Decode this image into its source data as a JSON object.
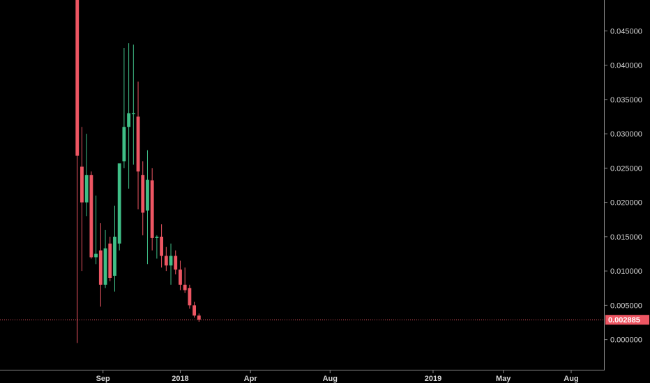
{
  "chart_data": {
    "type": "candlestick",
    "interval": "weekly",
    "colors": {
      "up": "#3fbf87",
      "down": "#ee5663",
      "background": "#000000",
      "axis": "#8a8a8a",
      "price_line": "#ee5663"
    },
    "x_ticks": [
      "Sep",
      "2018",
      "Apr",
      "Aug",
      "2019",
      "May",
      "Aug"
    ],
    "x_tick_index": [
      5.5,
      22,
      37,
      54,
      76,
      91,
      105.5
    ],
    "y_ticks": [
      "0.045000",
      "0.040000",
      "0.035000",
      "0.030000",
      "0.025000",
      "0.020000",
      "0.015000",
      "0.010000",
      "0.005000",
      "0.000000"
    ],
    "y_tick_values": [
      0.045,
      0.04,
      0.035,
      0.03,
      0.025,
      0.02,
      0.015,
      0.01,
      0.005,
      0.0
    ],
    "ylim": [
      -0.0044,
      0.0495
    ],
    "x_index_range": [
      -16.5,
      112.5
    ],
    "last_price": {
      "value": 0.002885,
      "label": "0.002885"
    },
    "candles": [
      {
        "o": 0.06,
        "h": 0.08,
        "l": -0.0005,
        "c": 0.0268
      },
      {
        "o": 0.0252,
        "h": 0.031,
        "l": 0.01,
        "c": 0.02
      },
      {
        "o": 0.02,
        "h": 0.03,
        "l": 0.018,
        "c": 0.024
      },
      {
        "o": 0.024,
        "h": 0.0245,
        "l": 0.0118,
        "c": 0.012
      },
      {
        "o": 0.012,
        "h": 0.021,
        "l": 0.011,
        "c": 0.0125
      },
      {
        "o": 0.013,
        "h": 0.017,
        "l": 0.0048,
        "c": 0.008
      },
      {
        "o": 0.008,
        "h": 0.016,
        "l": 0.0075,
        "c": 0.0133
      },
      {
        "o": 0.014,
        "h": 0.015,
        "l": 0.0085,
        "c": 0.009
      },
      {
        "o": 0.0093,
        "h": 0.0195,
        "l": 0.007,
        "c": 0.015
      },
      {
        "o": 0.014,
        "h": 0.0255,
        "l": 0.013,
        "c": 0.0257
      },
      {
        "o": 0.026,
        "h": 0.0425,
        "l": 0.025,
        "c": 0.031
      },
      {
        "o": 0.031,
        "h": 0.0432,
        "l": 0.022,
        "c": 0.033
      },
      {
        "o": 0.033,
        "h": 0.043,
        "l": 0.0255,
        "c": 0.033
      },
      {
        "o": 0.0325,
        "h": 0.0376,
        "l": 0.019,
        "c": 0.0245
      },
      {
        "o": 0.024,
        "h": 0.026,
        "l": 0.0152,
        "c": 0.0185
      },
      {
        "o": 0.0188,
        "h": 0.0276,
        "l": 0.011,
        "c": 0.0233
      },
      {
        "o": 0.0232,
        "h": 0.025,
        "l": 0.013,
        "c": 0.0148
      },
      {
        "o": 0.0148,
        "h": 0.0152,
        "l": 0.0118,
        "c": 0.015
      },
      {
        "o": 0.015,
        "h": 0.0168,
        "l": 0.0105,
        "c": 0.0122
      },
      {
        "o": 0.0122,
        "h": 0.0135,
        "l": 0.01,
        "c": 0.0108
      },
      {
        "o": 0.0108,
        "h": 0.014,
        "l": 0.008,
        "c": 0.0122
      },
      {
        "o": 0.0122,
        "h": 0.013,
        "l": 0.0095,
        "c": 0.0102
      },
      {
        "o": 0.0102,
        "h": 0.0115,
        "l": 0.0072,
        "c": 0.008
      },
      {
        "o": 0.008,
        "h": 0.0105,
        "l": 0.0068,
        "c": 0.0072
      },
      {
        "o": 0.0075,
        "h": 0.008,
        "l": 0.0045,
        "c": 0.005
      },
      {
        "o": 0.005,
        "h": 0.0055,
        "l": 0.0032,
        "c": 0.0035
      },
      {
        "o": 0.0035,
        "h": 0.0038,
        "l": 0.0026,
        "c": 0.0029
      }
    ]
  }
}
